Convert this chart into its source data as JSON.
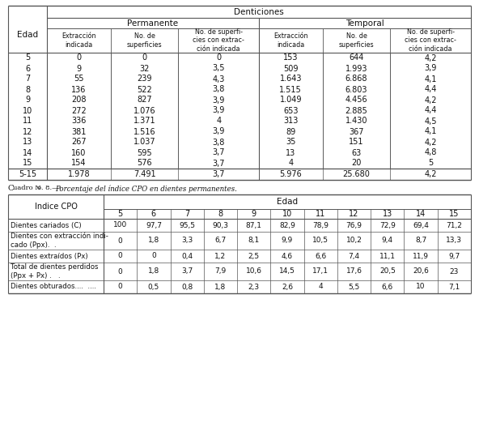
{
  "table1_col_headers": [
    "Extracción\nindicada",
    "No. de\nsuperficies",
    "No. de superfi-\ncies con extrac-\nción indicada",
    "Extracción\nindicada",
    "No. de\nsuperficies",
    "No. de superfi-\ncies con extrac-\nción indicada"
  ],
  "table1_rows": [
    [
      "5",
      "0",
      "0",
      "0",
      "153",
      "644",
      "4,2"
    ],
    [
      "6",
      "9",
      "32",
      "3,5",
      "509",
      "1.993",
      "3,9"
    ],
    [
      "7",
      "55",
      "239",
      "4,3",
      "1.643",
      "6.868",
      "4,1"
    ],
    [
      "8",
      "136",
      "522",
      "3,8",
      "1.515",
      "6.803",
      "4,4"
    ],
    [
      "9",
      "208",
      "827",
      "3,9",
      "1.049",
      "4.456",
      "4,2"
    ],
    [
      "10",
      "272",
      "1.076",
      "3,9",
      "653",
      "2.885",
      "4,4"
    ],
    [
      "11",
      "336",
      "1.371",
      "4",
      "313",
      "1.430",
      "4,5"
    ],
    [
      "12",
      "381",
      "1.516",
      "3,9",
      "89",
      "367",
      "4,1"
    ],
    [
      "13",
      "267",
      "1.037",
      "3,8",
      "35",
      "151",
      "4,2"
    ],
    [
      "14",
      "160",
      "595",
      "3,7",
      "13",
      "63",
      "4,8"
    ],
    [
      "15",
      "154",
      "576",
      "3,7",
      "4",
      "20",
      "5"
    ]
  ],
  "table1_total": [
    "5-15",
    "1.978",
    "7.491",
    "3,7",
    "5.976",
    "25.680",
    "4,2"
  ],
  "table2_col_headers": [
    "5",
    "6",
    "7",
    "8",
    "9",
    "10",
    "11",
    "12",
    "13",
    "14",
    "15"
  ],
  "table2_rows": [
    [
      "Dientes cariados (C)",
      "100",
      "97,7",
      "95,5",
      "90,3",
      "87,1",
      "82,9",
      "78,9",
      "76,9",
      "72,9",
      "69,4",
      "71,2"
    ],
    [
      "Dientes con extracción indi-\ncado (Ppx).  .",
      "0",
      "1,8",
      "3,3",
      "6,7",
      "8,1",
      "9,9",
      "10,5",
      "10,2",
      "9,4",
      "8,7",
      "13,3"
    ],
    [
      "Dientes extraídos (Px)",
      "0",
      "0",
      "0,4",
      "1,2",
      "2,5",
      "4,6",
      "6,6",
      "7,4",
      "11,1",
      "11,9",
      "9,7"
    ],
    [
      "Total de dientes perdidos\n(Ppx + Px) .   .",
      "0",
      "1,8",
      "3,7",
      "7,9",
      "10,6",
      "14,5",
      "17,1",
      "17,6",
      "20,5",
      "20,6",
      "23"
    ],
    [
      "Dientes obturados....  ....",
      "0",
      "0,5",
      "0,8",
      "1,8",
      "2,3",
      "2,6",
      "4",
      "5,5",
      "6,6",
      "10",
      "7,1"
    ]
  ],
  "bg_color": "#ffffff",
  "text_color": "#111111",
  "line_color": "#555555"
}
